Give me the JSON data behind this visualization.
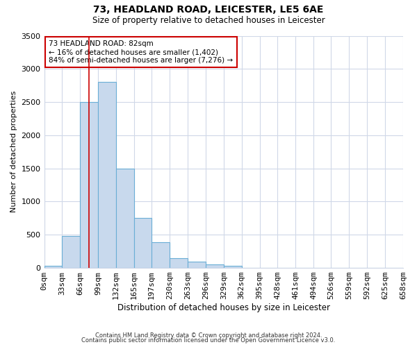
{
  "title": "73, HEADLAND ROAD, LEICESTER, LE5 6AE",
  "subtitle": "Size of property relative to detached houses in Leicester",
  "xlabel": "Distribution of detached houses by size in Leicester",
  "ylabel": "Number of detached properties",
  "bin_edges": [
    0,
    33,
    66,
    99,
    132,
    165,
    197,
    230,
    263,
    296,
    329,
    362,
    395,
    428,
    461,
    494,
    526,
    559,
    592,
    625,
    658
  ],
  "bin_labels": [
    "0sqm",
    "33sqm",
    "66sqm",
    "99sqm",
    "132sqm",
    "165sqm",
    "197sqm",
    "230sqm",
    "263sqm",
    "296sqm",
    "329sqm",
    "362sqm",
    "395sqm",
    "428sqm",
    "461sqm",
    "494sqm",
    "526sqm",
    "559sqm",
    "592sqm",
    "625sqm",
    "658sqm"
  ],
  "bar_heights": [
    30,
    480,
    2500,
    2800,
    1500,
    750,
    390,
    150,
    90,
    55,
    30,
    0,
    0,
    0,
    0,
    0,
    0,
    0,
    0,
    0
  ],
  "bar_color": "#c8d9ed",
  "bar_edge_color": "#6aaed6",
  "property_line_x": 82,
  "property_line_color": "#cc0000",
  "ylim": [
    0,
    3500
  ],
  "yticks": [
    0,
    500,
    1000,
    1500,
    2000,
    2500,
    3000,
    3500
  ],
  "annotation_text": "73 HEADLAND ROAD: 82sqm\n← 16% of detached houses are smaller (1,402)\n84% of semi-detached houses are larger (7,276) →",
  "annotation_box_edge_color": "#cc0000",
  "annotation_box_bg": "#ffffff",
  "footer_line1": "Contains HM Land Registry data © Crown copyright and database right 2024.",
  "footer_line2": "Contains public sector information licensed under the Open Government Licence v3.0.",
  "background_color": "#ffffff",
  "plot_bg_color": "#ffffff",
  "grid_color": "#d0d8e8"
}
